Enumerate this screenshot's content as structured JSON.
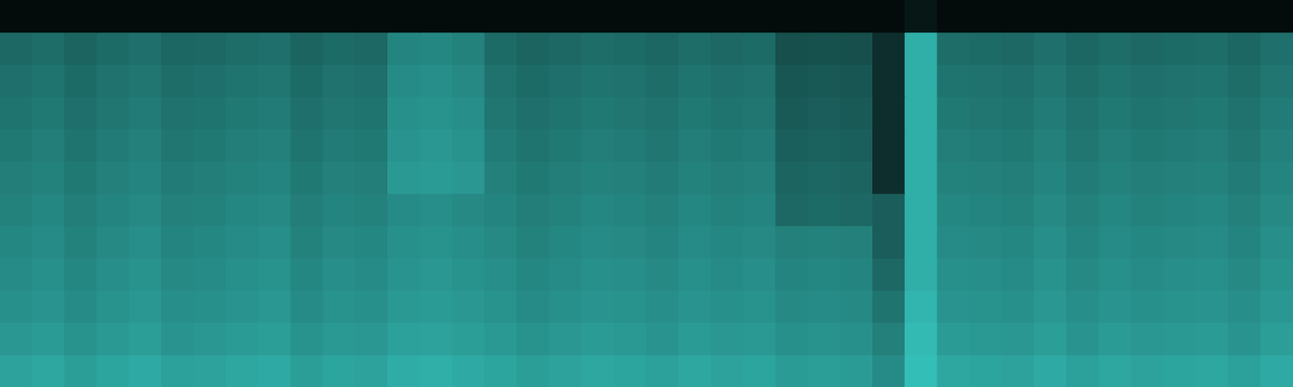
{
  "chart_data": {
    "type": "heatmap",
    "color": "#40e8e0",
    "grid": false,
    "tick_labels": false,
    "xlim": [
      0,
      40
    ],
    "ylim": [
      0,
      12
    ],
    "cells": [
      [
        0.05,
        0.05,
        0.05,
        0.05,
        0.05,
        0.05,
        0.05,
        0.05,
        0.05,
        0.05,
        0.05,
        0.05,
        0.05,
        0.05,
        0.05,
        0.05,
        0.05,
        0.05,
        0.05,
        0.05,
        0.05,
        0.05,
        0.05,
        0.05,
        0.05,
        0.05,
        0.05,
        0.05,
        0.1,
        0.05,
        0.05,
        0.05,
        0.05,
        0.05,
        0.05,
        0.05,
        0.05,
        0.05,
        0.05,
        0.05
      ],
      [
        0.45,
        0.47,
        0.43,
        0.46,
        0.48,
        0.44,
        0.45,
        0.47,
        0.48,
        0.43,
        0.46,
        0.45,
        0.57,
        0.58,
        0.56,
        0.46,
        0.43,
        0.45,
        0.47,
        0.46,
        0.44,
        0.47,
        0.45,
        0.46,
        0.34,
        0.35,
        0.34,
        0.2,
        0.75,
        0.47,
        0.46,
        0.45,
        0.48,
        0.44,
        0.47,
        0.45,
        0.46,
        0.47,
        0.44,
        0.48
      ],
      [
        0.48,
        0.5,
        0.46,
        0.49,
        0.51,
        0.47,
        0.48,
        0.5,
        0.51,
        0.46,
        0.49,
        0.48,
        0.6,
        0.61,
        0.59,
        0.49,
        0.46,
        0.48,
        0.5,
        0.49,
        0.47,
        0.5,
        0.48,
        0.49,
        0.37,
        0.38,
        0.37,
        0.2,
        0.75,
        0.5,
        0.49,
        0.48,
        0.51,
        0.47,
        0.5,
        0.48,
        0.49,
        0.5,
        0.47,
        0.51
      ],
      [
        0.5,
        0.52,
        0.48,
        0.51,
        0.53,
        0.49,
        0.5,
        0.52,
        0.53,
        0.48,
        0.51,
        0.5,
        0.62,
        0.63,
        0.61,
        0.51,
        0.48,
        0.5,
        0.52,
        0.51,
        0.49,
        0.52,
        0.5,
        0.51,
        0.39,
        0.4,
        0.39,
        0.2,
        0.75,
        0.52,
        0.51,
        0.5,
        0.53,
        0.49,
        0.52,
        0.5,
        0.51,
        0.52,
        0.49,
        0.53
      ],
      [
        0.52,
        0.54,
        0.5,
        0.53,
        0.55,
        0.51,
        0.52,
        0.54,
        0.55,
        0.5,
        0.53,
        0.52,
        0.64,
        0.65,
        0.63,
        0.53,
        0.5,
        0.52,
        0.54,
        0.53,
        0.51,
        0.54,
        0.52,
        0.53,
        0.41,
        0.42,
        0.41,
        0.2,
        0.75,
        0.54,
        0.53,
        0.52,
        0.55,
        0.51,
        0.54,
        0.52,
        0.53,
        0.54,
        0.51,
        0.55
      ],
      [
        0.54,
        0.56,
        0.52,
        0.55,
        0.57,
        0.53,
        0.54,
        0.56,
        0.57,
        0.52,
        0.55,
        0.54,
        0.66,
        0.67,
        0.65,
        0.55,
        0.52,
        0.54,
        0.56,
        0.55,
        0.53,
        0.56,
        0.54,
        0.55,
        0.43,
        0.44,
        0.43,
        0.2,
        0.75,
        0.56,
        0.55,
        0.54,
        0.57,
        0.53,
        0.56,
        0.54,
        0.55,
        0.56,
        0.53,
        0.57
      ],
      [
        0.56,
        0.58,
        0.54,
        0.57,
        0.59,
        0.55,
        0.56,
        0.58,
        0.59,
        0.54,
        0.57,
        0.56,
        0.6,
        0.61,
        0.59,
        0.57,
        0.54,
        0.56,
        0.58,
        0.57,
        0.55,
        0.58,
        0.56,
        0.57,
        0.45,
        0.46,
        0.45,
        0.4,
        0.75,
        0.58,
        0.57,
        0.56,
        0.59,
        0.55,
        0.58,
        0.56,
        0.57,
        0.58,
        0.55,
        0.59
      ],
      [
        0.58,
        0.6,
        0.56,
        0.59,
        0.61,
        0.57,
        0.58,
        0.6,
        0.61,
        0.56,
        0.59,
        0.58,
        0.62,
        0.63,
        0.61,
        0.59,
        0.56,
        0.58,
        0.6,
        0.59,
        0.57,
        0.6,
        0.58,
        0.59,
        0.55,
        0.56,
        0.55,
        0.4,
        0.75,
        0.6,
        0.59,
        0.58,
        0.61,
        0.57,
        0.6,
        0.58,
        0.59,
        0.6,
        0.57,
        0.61
      ],
      [
        0.6,
        0.62,
        0.58,
        0.61,
        0.63,
        0.59,
        0.6,
        0.62,
        0.63,
        0.58,
        0.61,
        0.6,
        0.64,
        0.65,
        0.63,
        0.61,
        0.58,
        0.6,
        0.62,
        0.61,
        0.59,
        0.62,
        0.6,
        0.61,
        0.57,
        0.58,
        0.57,
        0.45,
        0.75,
        0.62,
        0.61,
        0.6,
        0.63,
        0.59,
        0.62,
        0.6,
        0.61,
        0.62,
        0.59,
        0.63
      ],
      [
        0.62,
        0.64,
        0.6,
        0.63,
        0.65,
        0.61,
        0.62,
        0.64,
        0.65,
        0.6,
        0.63,
        0.62,
        0.66,
        0.67,
        0.65,
        0.63,
        0.6,
        0.62,
        0.64,
        0.63,
        0.61,
        0.64,
        0.62,
        0.63,
        0.59,
        0.6,
        0.59,
        0.5,
        0.78,
        0.64,
        0.63,
        0.62,
        0.65,
        0.61,
        0.64,
        0.62,
        0.63,
        0.64,
        0.61,
        0.65
      ],
      [
        0.65,
        0.67,
        0.63,
        0.66,
        0.68,
        0.64,
        0.65,
        0.67,
        0.68,
        0.63,
        0.66,
        0.65,
        0.69,
        0.7,
        0.68,
        0.66,
        0.63,
        0.65,
        0.67,
        0.66,
        0.64,
        0.67,
        0.65,
        0.66,
        0.62,
        0.63,
        0.62,
        0.55,
        0.8,
        0.67,
        0.66,
        0.65,
        0.68,
        0.64,
        0.67,
        0.65,
        0.66,
        0.67,
        0.64,
        0.68
      ],
      [
        0.7,
        0.72,
        0.68,
        0.71,
        0.73,
        0.69,
        0.7,
        0.72,
        0.73,
        0.68,
        0.71,
        0.7,
        0.74,
        0.75,
        0.73,
        0.71,
        0.68,
        0.7,
        0.72,
        0.71,
        0.69,
        0.72,
        0.7,
        0.71,
        0.67,
        0.68,
        0.67,
        0.6,
        0.82,
        0.72,
        0.71,
        0.7,
        0.73,
        0.69,
        0.72,
        0.7,
        0.71,
        0.72,
        0.69,
        0.73
      ]
    ]
  }
}
